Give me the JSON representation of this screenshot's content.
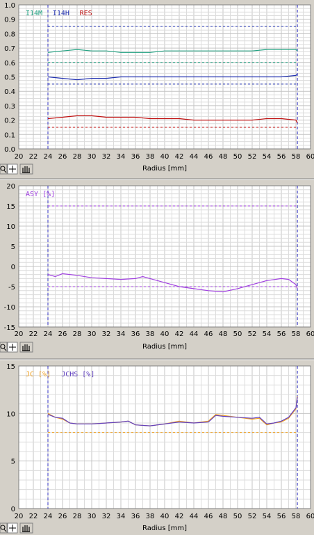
{
  "x_axis": {
    "label": "Radius [mm]",
    "ticks": [
      20,
      22,
      24,
      26,
      28,
      30,
      32,
      34,
      36,
      38,
      40,
      42,
      44,
      46,
      48,
      50,
      52,
      54,
      56,
      58,
      60
    ],
    "min": 20,
    "max": 60
  },
  "toolbar_icons": [
    "zoom-icon",
    "crosshair-icon",
    "hand-pan-icon"
  ],
  "colors": {
    "panel_bg": "#d4d0c8",
    "grid_minor": "#dcdcdc",
    "grid_major": "#c4c4c4",
    "marker_line": "#3030c0",
    "i14m": "#20a080",
    "i14h": "#2030b0",
    "res": "#c01010",
    "asy": "#a040e0",
    "jc": "#f0a020",
    "jchs": "#6040c0"
  },
  "chart_data": [
    {
      "type": "line",
      "ylim": [
        0,
        1.0
      ],
      "yticks": [
        "0.0",
        "0.1",
        "0.2",
        "0.3",
        "0.4",
        "0.5",
        "0.6",
        "0.7",
        "0.8",
        "0.9",
        "1.0"
      ],
      "xlim": [
        20,
        60
      ],
      "vlines": [
        24,
        58.2
      ],
      "legend": [
        "I14M",
        "I14H",
        "RES"
      ],
      "hlines": [
        {
          "y": 0.85,
          "series": "I14H"
        },
        {
          "y": 0.6,
          "series": "I14M"
        },
        {
          "y": 0.45,
          "series": "I14H"
        },
        {
          "y": 0.15,
          "series": "RES"
        }
      ],
      "series": [
        {
          "name": "I14M",
          "color_key": "i14m",
          "x": [
            24,
            26,
            28,
            30,
            32,
            34,
            36,
            38,
            40,
            42,
            44,
            46,
            48,
            50,
            52,
            54,
            56,
            58,
            58.2
          ],
          "y": [
            0.67,
            0.68,
            0.69,
            0.68,
            0.68,
            0.67,
            0.67,
            0.67,
            0.68,
            0.68,
            0.68,
            0.68,
            0.68,
            0.68,
            0.68,
            0.69,
            0.69,
            0.69,
            0.68
          ]
        },
        {
          "name": "I14H",
          "color_key": "i14h",
          "x": [
            24,
            26,
            28,
            30,
            32,
            34,
            36,
            38,
            40,
            42,
            44,
            46,
            48,
            50,
            52,
            54,
            56,
            58,
            58.2
          ],
          "y": [
            0.5,
            0.49,
            0.48,
            0.49,
            0.49,
            0.5,
            0.5,
            0.5,
            0.5,
            0.5,
            0.5,
            0.5,
            0.5,
            0.5,
            0.5,
            0.5,
            0.5,
            0.51,
            0.52
          ]
        },
        {
          "name": "RES",
          "color_key": "res",
          "x": [
            24,
            26,
            28,
            30,
            32,
            34,
            36,
            38,
            40,
            42,
            44,
            46,
            48,
            50,
            52,
            54,
            56,
            58,
            58.2
          ],
          "y": [
            0.21,
            0.22,
            0.23,
            0.23,
            0.22,
            0.22,
            0.22,
            0.21,
            0.21,
            0.21,
            0.2,
            0.2,
            0.2,
            0.2,
            0.2,
            0.21,
            0.21,
            0.2,
            0.18
          ]
        }
      ]
    },
    {
      "type": "line",
      "ylim": [
        -15,
        20
      ],
      "yticks": [
        "-15",
        "-10",
        "-5",
        "0",
        "5",
        "10",
        "15",
        "20"
      ],
      "xlim": [
        20,
        60
      ],
      "vlines": [
        24,
        58.2
      ],
      "legend": [
        "ASY [%]"
      ],
      "hlines": [
        {
          "y": 15,
          "series": "ASY [%]"
        },
        {
          "y": -5,
          "series": "ASY [%]"
        }
      ],
      "series": [
        {
          "name": "ASY [%]",
          "color_key": "asy",
          "x": [
            24,
            25,
            26,
            28,
            30,
            32,
            34,
            36,
            37,
            38,
            40,
            42,
            44,
            46,
            48,
            50,
            52,
            54,
            56,
            57,
            58,
            58.2
          ],
          "y": [
            -2.0,
            -2.5,
            -1.8,
            -2.2,
            -2.8,
            -3.0,
            -3.2,
            -3.0,
            -2.5,
            -3.0,
            -4.0,
            -5.0,
            -5.5,
            -6.0,
            -6.3,
            -5.5,
            -4.5,
            -3.5,
            -3.0,
            -3.2,
            -4.5,
            -5.5
          ]
        }
      ]
    },
    {
      "type": "line",
      "ylim": [
        0,
        15
      ],
      "yticks": [
        "0",
        "5",
        "10",
        "15"
      ],
      "xlim": [
        20,
        60
      ],
      "vlines": [
        24,
        58.2
      ],
      "legend": [
        "JC [%]",
        "JCHS [%]"
      ],
      "hlines": [
        {
          "y": 8.0,
          "series": "JC [%]"
        }
      ],
      "series": [
        {
          "name": "JC [%]",
          "color_key": "jc",
          "x": [
            24,
            25,
            26,
            27,
            28,
            30,
            32,
            34,
            35,
            36,
            38,
            40,
            42,
            44,
            46,
            47,
            48,
            50,
            52,
            53,
            54,
            55,
            56,
            57,
            58,
            58.2
          ],
          "y": [
            10.0,
            9.6,
            9.4,
            9.0,
            8.9,
            8.9,
            9.0,
            9.1,
            9.2,
            8.8,
            8.7,
            8.9,
            9.2,
            9.0,
            9.2,
            9.9,
            9.8,
            9.6,
            9.4,
            9.5,
            8.8,
            9.0,
            9.1,
            9.5,
            10.5,
            11.8
          ]
        },
        {
          "name": "JCHS [%]",
          "color_key": "jchs",
          "x": [
            24,
            25,
            26,
            27,
            28,
            30,
            32,
            34,
            35,
            36,
            38,
            40,
            42,
            44,
            46,
            47,
            48,
            50,
            52,
            53,
            54,
            55,
            56,
            57,
            58,
            58.2
          ],
          "y": [
            9.9,
            9.6,
            9.5,
            9.0,
            8.9,
            8.9,
            9.0,
            9.1,
            9.2,
            8.8,
            8.7,
            8.9,
            9.1,
            9.0,
            9.1,
            9.8,
            9.7,
            9.6,
            9.5,
            9.6,
            8.9,
            9.0,
            9.2,
            9.6,
            10.6,
            11.7
          ]
        }
      ]
    }
  ]
}
